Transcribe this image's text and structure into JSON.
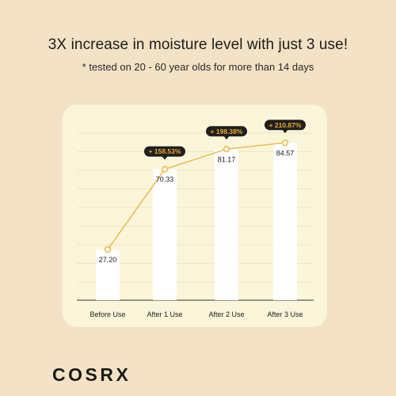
{
  "header": {
    "title": "3X increase in moisture level with just 3 use!",
    "subtitle": "* tested on 20 - 60 year olds for more than 14 days"
  },
  "brand": {
    "logo_text": "COSRX"
  },
  "colors": {
    "background": "#f3e2c5",
    "card": "#fbf5d9",
    "bar": "#ffffff",
    "line": "#e7b33a",
    "badge": "#1f1f1f",
    "badge_text": "#f0a92e"
  },
  "chart_data": {
    "type": "bar",
    "title": "3X increase in moisture level with just 3 use!",
    "categories": [
      "Before Use",
      "After 1 Use",
      "After 2 Use",
      "After 3 Use"
    ],
    "values": [
      27.2,
      70.33,
      81.17,
      84.57
    ],
    "value_labels": [
      "27.20",
      "70.33",
      "81.17",
      "84.57"
    ],
    "increase_labels": [
      "",
      "+ 158.53%",
      "+ 198.38%",
      "+ 210.87%"
    ],
    "ylim": [
      0,
      100
    ],
    "grid": true,
    "xlabel": "",
    "ylabel": ""
  }
}
